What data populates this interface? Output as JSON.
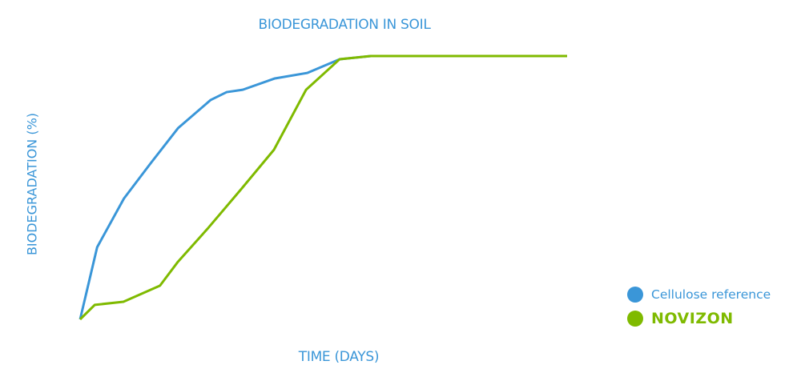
{
  "chart_data": {
    "type": "line",
    "title": "BIODEGRADATION IN SOIL",
    "xlabel": "TIME (DAYS)",
    "ylabel": "BIODEGRADATION (%)",
    "xlim": [
      0,
      100
    ],
    "ylim": [
      0,
      100
    ],
    "grid": false,
    "legend_position": "bottom-right",
    "series": [
      {
        "name": "Cellulose reference",
        "color": "#3a96d8",
        "x": [
          0,
          3.5,
          9.0,
          14.5,
          20.1,
          26.8,
          30.1,
          33.4,
          40.0,
          46.7,
          53.3,
          59.7,
          100
        ],
        "y": [
          0,
          27.4,
          45.9,
          59.3,
          72.6,
          83.3,
          86.3,
          87.2,
          91.5,
          93.6,
          98.8,
          100,
          100
        ]
      },
      {
        "name": "NOVIZON",
        "color": "#7fba00",
        "x": [
          0,
          3.0,
          8.9,
          16.4,
          20.1,
          26.3,
          33.1,
          39.8,
          46.4,
          53.3,
          59.7,
          100
        ],
        "y": [
          0,
          5.5,
          6.7,
          12.8,
          21.9,
          34.7,
          49.5,
          64.4,
          87.2,
          98.8,
          100,
          100
        ]
      }
    ]
  }
}
